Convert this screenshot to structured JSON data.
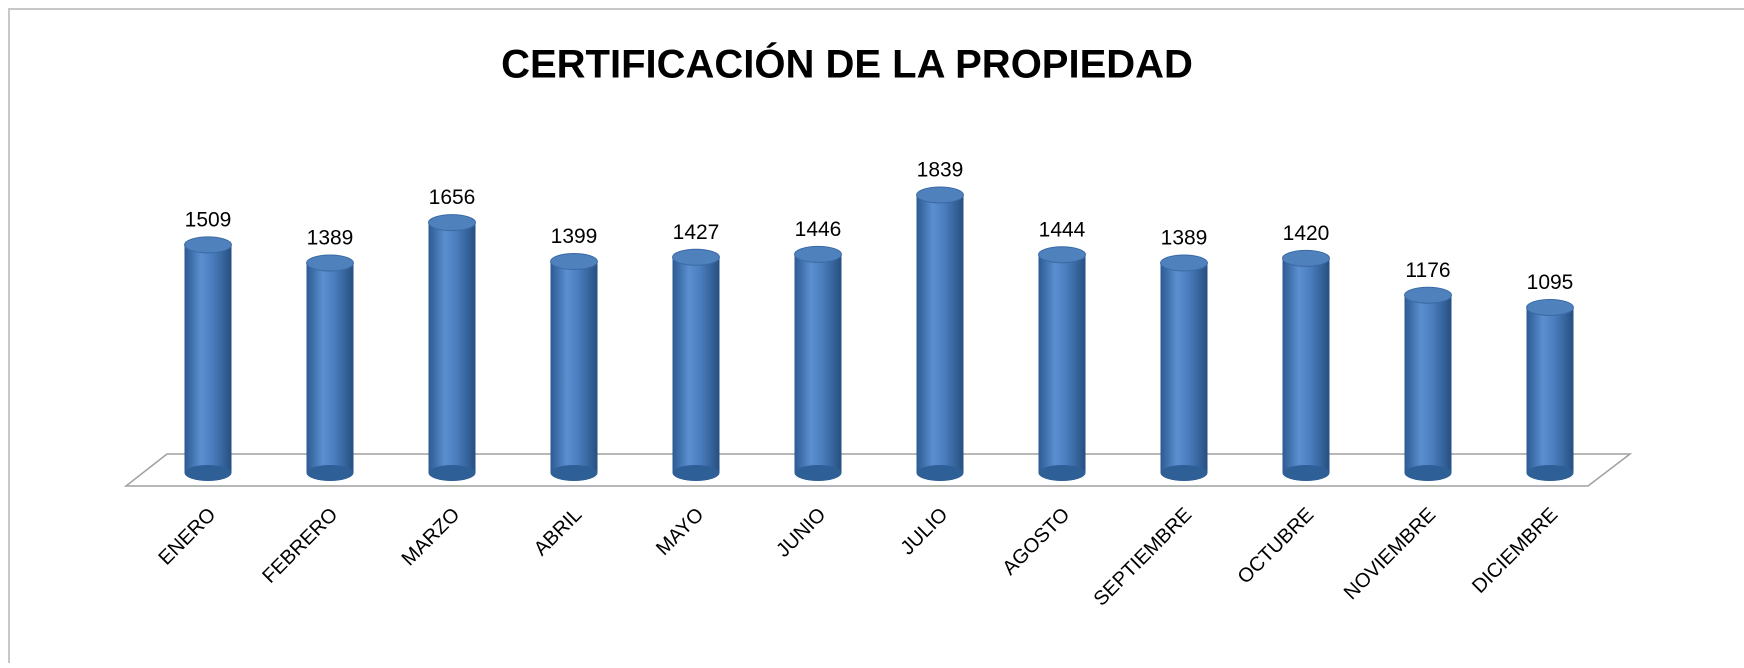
{
  "chart_data": {
    "type": "bar",
    "title": "CERTIFICACIÓN DE LA PROPIEDAD",
    "categories": [
      "ENERO",
      "FEBRERO",
      "MARZO",
      "ABRIL",
      "MAYO",
      "JUNIO",
      "JULIO",
      "AGOSTO",
      "SEPTIEMBRE",
      "OCTUBRE",
      "NOVIEMBRE",
      "DICIEMBRE"
    ],
    "values": [
      1509,
      1389,
      1656,
      1399,
      1427,
      1446,
      1839,
      1444,
      1389,
      1420,
      1176,
      1095
    ],
    "color": "#4f81bd"
  }
}
